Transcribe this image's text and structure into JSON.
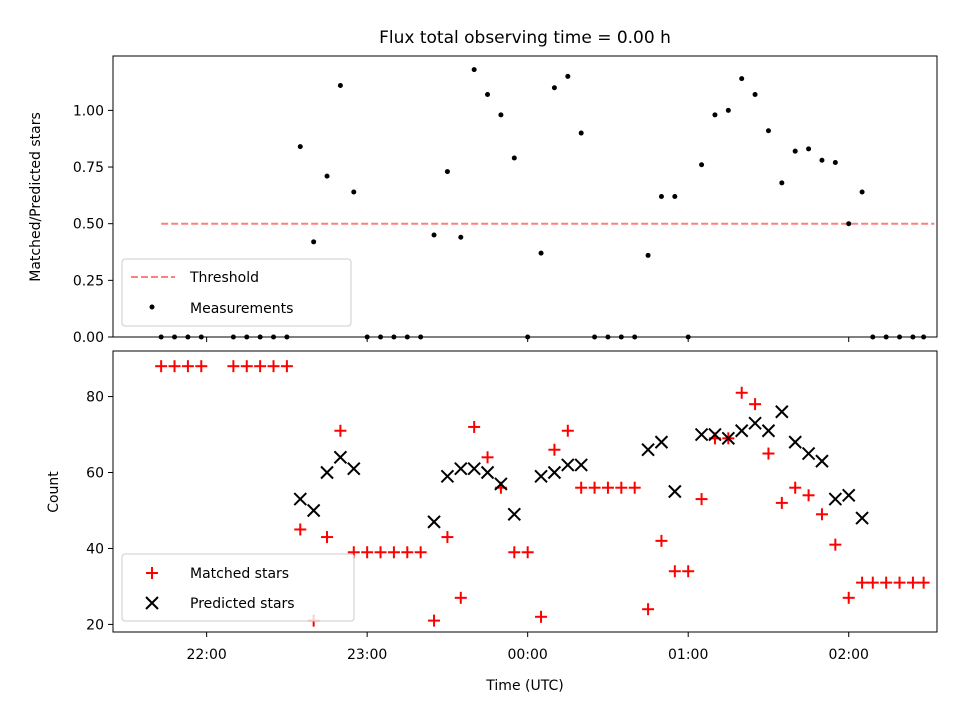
{
  "chart_data": [
    {
      "type": "scatter",
      "title": "Flux total observing time = 0.00 h",
      "xlabel": "",
      "ylabel": "Matched/Predicted stars",
      "ylim": [
        0,
        1.24
      ],
      "xlim": [
        "21:25",
        "02:33"
      ],
      "yticks": [
        "0.00",
        "0.25",
        "0.50",
        "0.75",
        "1.00"
      ],
      "legend_position": "lower-left",
      "threshold": {
        "name": "Threshold",
        "value": 0.5,
        "x_range": [
          "21:43",
          "02:32"
        ],
        "color": "#ff7f7f",
        "style": "dashed"
      },
      "series": [
        {
          "name": "Measurements",
          "color": "#000000",
          "marker": "dot",
          "points": [
            [
              "21:43",
              0
            ],
            [
              "21:48",
              0
            ],
            [
              "21:53",
              0
            ],
            [
              "21:58",
              0
            ],
            [
              "22:10",
              0
            ],
            [
              "22:15",
              0
            ],
            [
              "22:20",
              0
            ],
            [
              "22:25",
              0
            ],
            [
              "22:30",
              0
            ],
            [
              "22:35",
              0.84
            ],
            [
              "22:40",
              0.42
            ],
            [
              "22:45",
              0.71
            ],
            [
              "22:50",
              1.11
            ],
            [
              "22:55",
              0.64
            ],
            [
              "23:00",
              0
            ],
            [
              "23:05",
              0
            ],
            [
              "23:10",
              0
            ],
            [
              "23:15",
              0
            ],
            [
              "23:20",
              0
            ],
            [
              "23:25",
              0.45
            ],
            [
              "23:30",
              0.73
            ],
            [
              "23:35",
              0.44
            ],
            [
              "23:40",
              1.18
            ],
            [
              "23:45",
              1.07
            ],
            [
              "23:50",
              0.98
            ],
            [
              "23:55",
              0.79
            ],
            [
              "00:00",
              0
            ],
            [
              "00:05",
              0.37
            ],
            [
              "00:10",
              1.1
            ],
            [
              "00:15",
              1.15
            ],
            [
              "00:20",
              0.9
            ],
            [
              "00:25",
              0
            ],
            [
              "00:30",
              0
            ],
            [
              "00:35",
              0
            ],
            [
              "00:40",
              0
            ],
            [
              "00:45",
              0.36
            ],
            [
              "00:50",
              0.62
            ],
            [
              "00:55",
              0.62
            ],
            [
              "01:00",
              0
            ],
            [
              "01:05",
              0.76
            ],
            [
              "01:10",
              0.98
            ],
            [
              "01:15",
              1.0
            ],
            [
              "01:20",
              1.14
            ],
            [
              "01:25",
              1.07
            ],
            [
              "01:30",
              0.91
            ],
            [
              "01:35",
              0.68
            ],
            [
              "01:40",
              0.82
            ],
            [
              "01:45",
              0.83
            ],
            [
              "01:50",
              0.78
            ],
            [
              "01:55",
              0.77
            ],
            [
              "02:00",
              0.5
            ],
            [
              "02:05",
              0.64
            ],
            [
              "02:09",
              0
            ],
            [
              "02:14",
              0
            ],
            [
              "02:19",
              0
            ],
            [
              "02:24",
              0
            ],
            [
              "02:28",
              0
            ]
          ]
        }
      ]
    },
    {
      "type": "scatter",
      "title": "",
      "xlabel": "Time (UTC)",
      "ylabel": "Count",
      "ylim": [
        18,
        92
      ],
      "xlim": [
        "21:25",
        "02:33"
      ],
      "xticks": [
        "22:00",
        "23:00",
        "00:00",
        "01:00",
        "02:00"
      ],
      "yticks": [
        "20",
        "40",
        "60",
        "80"
      ],
      "legend_position": "lower-left",
      "series": [
        {
          "name": "Matched stars",
          "color": "#ff0000",
          "marker": "plus",
          "points": [
            [
              "21:43",
              88
            ],
            [
              "21:48",
              88
            ],
            [
              "21:53",
              88
            ],
            [
              "21:58",
              88
            ],
            [
              "22:10",
              88
            ],
            [
              "22:15",
              88
            ],
            [
              "22:20",
              88
            ],
            [
              "22:25",
              88
            ],
            [
              "22:30",
              88
            ],
            [
              "22:35",
              45
            ],
            [
              "22:40",
              21
            ],
            [
              "22:45",
              43
            ],
            [
              "22:50",
              71
            ],
            [
              "22:55",
              39
            ],
            [
              "23:00",
              39
            ],
            [
              "23:05",
              39
            ],
            [
              "23:10",
              39
            ],
            [
              "23:15",
              39
            ],
            [
              "23:20",
              39
            ],
            [
              "23:25",
              21
            ],
            [
              "23:30",
              43
            ],
            [
              "23:35",
              27
            ],
            [
              "23:40",
              72
            ],
            [
              "23:45",
              64
            ],
            [
              "23:50",
              56
            ],
            [
              "23:55",
              39
            ],
            [
              "00:00",
              39
            ],
            [
              "00:05",
              22
            ],
            [
              "00:10",
              66
            ],
            [
              "00:15",
              71
            ],
            [
              "00:20",
              56
            ],
            [
              "00:25",
              56
            ],
            [
              "00:30",
              56
            ],
            [
              "00:35",
              56
            ],
            [
              "00:40",
              56
            ],
            [
              "00:45",
              24
            ],
            [
              "00:50",
              42
            ],
            [
              "00:55",
              34
            ],
            [
              "01:00",
              34
            ],
            [
              "01:05",
              53
            ],
            [
              "01:10",
              69
            ],
            [
              "01:15",
              69
            ],
            [
              "01:20",
              81
            ],
            [
              "01:25",
              78
            ],
            [
              "01:30",
              65
            ],
            [
              "01:35",
              52
            ],
            [
              "01:40",
              56
            ],
            [
              "01:45",
              54
            ],
            [
              "01:50",
              49
            ],
            [
              "01:55",
              41
            ],
            [
              "02:00",
              27
            ],
            [
              "02:05",
              31
            ],
            [
              "02:09",
              31
            ],
            [
              "02:14",
              31
            ],
            [
              "02:19",
              31
            ],
            [
              "02:24",
              31
            ],
            [
              "02:28",
              31
            ]
          ]
        },
        {
          "name": "Predicted stars",
          "color": "#000000",
          "marker": "x",
          "points": [
            [
              "22:35",
              53
            ],
            [
              "22:40",
              50
            ],
            [
              "22:45",
              60
            ],
            [
              "22:50",
              64
            ],
            [
              "22:55",
              61
            ],
            [
              "23:25",
              47
            ],
            [
              "23:30",
              59
            ],
            [
              "23:35",
              61
            ],
            [
              "23:40",
              61
            ],
            [
              "23:45",
              60
            ],
            [
              "23:50",
              57
            ],
            [
              "23:55",
              49
            ],
            [
              "00:05",
              59
            ],
            [
              "00:10",
              60
            ],
            [
              "00:15",
              62
            ],
            [
              "00:20",
              62
            ],
            [
              "00:45",
              66
            ],
            [
              "00:50",
              68
            ],
            [
              "00:55",
              55
            ],
            [
              "01:05",
              70
            ],
            [
              "01:10",
              70
            ],
            [
              "01:15",
              69
            ],
            [
              "01:20",
              71
            ],
            [
              "01:25",
              73
            ],
            [
              "01:30",
              71
            ],
            [
              "01:35",
              76
            ],
            [
              "01:40",
              68
            ],
            [
              "01:45",
              65
            ],
            [
              "01:50",
              63
            ],
            [
              "01:55",
              53
            ],
            [
              "02:00",
              54
            ],
            [
              "02:05",
              48
            ]
          ]
        }
      ]
    }
  ]
}
